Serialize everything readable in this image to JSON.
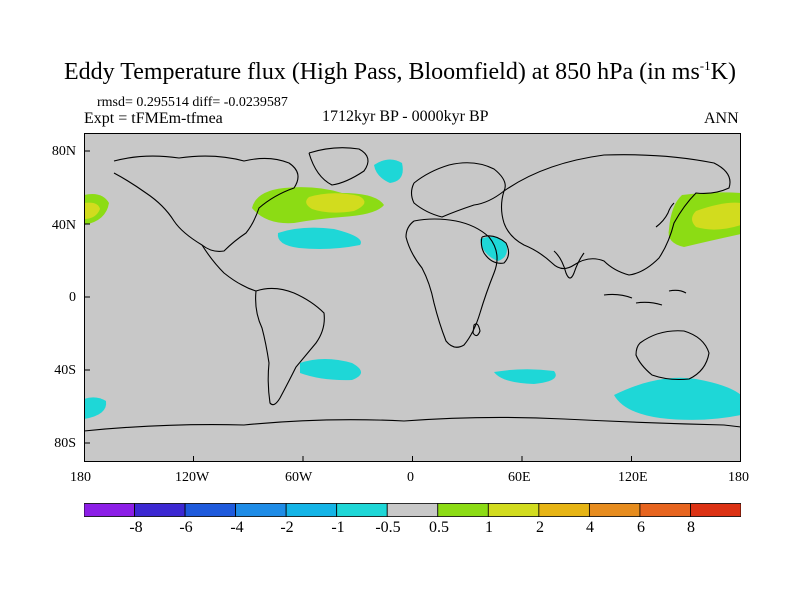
{
  "title": {
    "main": "Eddy Temperature flux (High Pass, Bloomfield) at 850 hPa (in ms",
    "units_exp": "-1",
    "units_tail": "K)"
  },
  "stats": "rmsd= 0.295514 diff= -0.0239587",
  "experiment": "Expt = tFMEm-tfmea",
  "period": "1712kyr BP - 0000kyr BP",
  "season": "ANN",
  "lat_labels": [
    "80N",
    "40N",
    "0",
    "40S",
    "80S"
  ],
  "lon_labels": [
    "180",
    "120W",
    "60W",
    "0",
    "60E",
    "120E",
    "180"
  ],
  "colorbar": {
    "labels": [
      "-8",
      "-6",
      "-4",
      "-2",
      "-1",
      "-0.5",
      "0.5",
      "1",
      "2",
      "4",
      "6",
      "8"
    ],
    "colors": [
      "#8c1ee6",
      "#3c28d2",
      "#1e5adc",
      "#1e8ce6",
      "#14b4e6",
      "#1ed7d7",
      "#c8c8c8",
      "#8cdc14",
      "#d2dc1e",
      "#e6b414",
      "#e68c1e",
      "#e6641e",
      "#dc3214"
    ]
  },
  "map": {
    "background": "#c8c8c8",
    "anomalies": [
      {
        "name": "north-atlantic-positive",
        "color": "#8cdc14"
      },
      {
        "name": "north-atlantic-core",
        "color": "#d2dc1e"
      },
      {
        "name": "west-atlantic-negative",
        "color": "#1ed7d7"
      },
      {
        "name": "north-pacific-positive",
        "color": "#8cdc14"
      },
      {
        "name": "north-pacific-core",
        "color": "#d2dc1e"
      },
      {
        "name": "southern-ocean-negative",
        "color": "#1ed7d7"
      },
      {
        "name": "arabian-negative",
        "color": "#1ed7d7"
      }
    ]
  }
}
